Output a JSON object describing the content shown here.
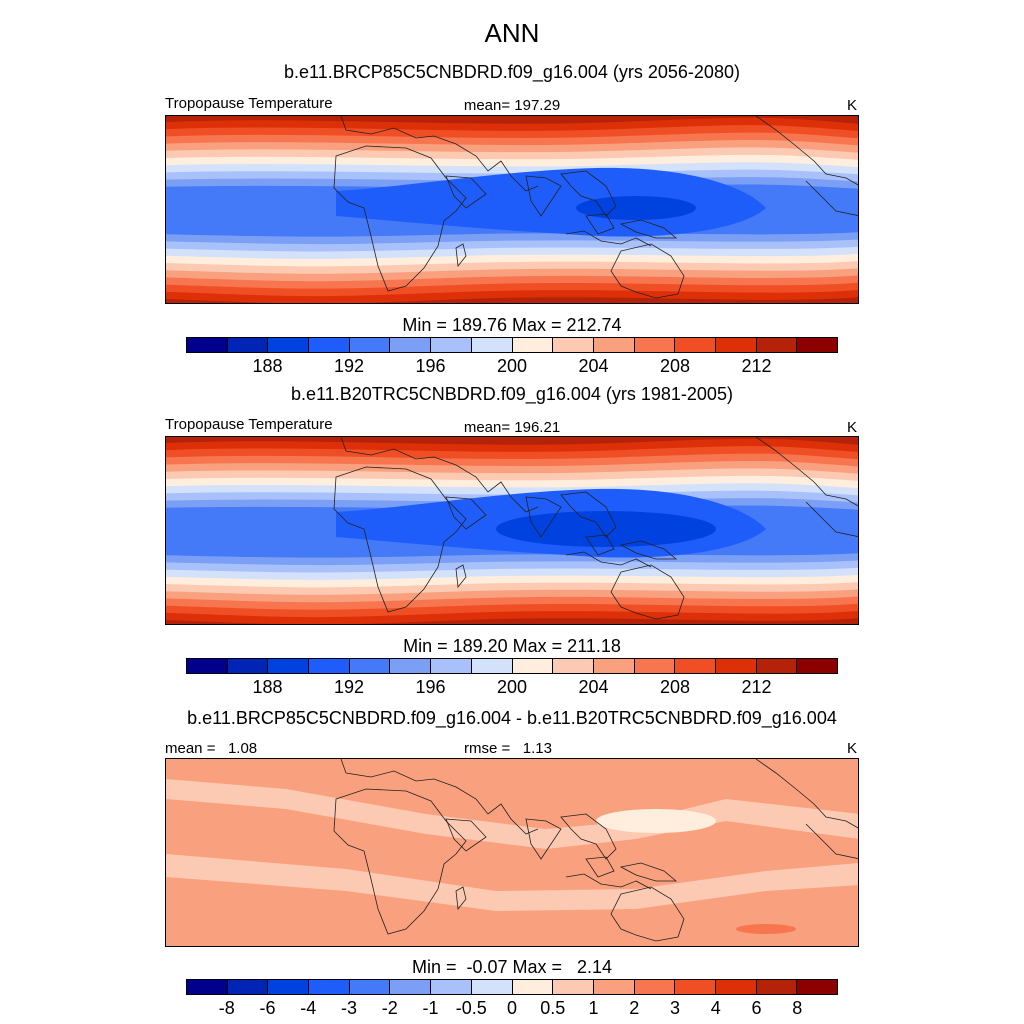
{
  "title": "ANN",
  "panels": [
    {
      "title": "b.e11.BRCP85C5CNBDRD.f09_g16.004 (yrs 2056-2080)",
      "left_label": "Tropopause Temperature",
      "center_label": "mean= 197.29",
      "unit": "K",
      "colorbar_title": "Min = 189.76 Max = 212.74",
      "colorbar_ticks": [
        "188",
        "192",
        "196",
        "200",
        "204",
        "208",
        "212"
      ],
      "colors": [
        "#00008c",
        "#0024b4",
        "#0042e0",
        "#1f5dfa",
        "#4479f7",
        "#7b9ff5",
        "#a9c1fa",
        "#d3e1fb",
        "#ffeedd",
        "#fccab2",
        "#f9a07e",
        "#f7764f",
        "#f04f25",
        "#de3008",
        "#b4220a",
        "#8c0000"
      ]
    },
    {
      "title": "b.e11.B20TRC5CNBDRD.f09_g16.004 (yrs 1981-2005)",
      "left_label": "Tropopause Temperature",
      "center_label": "mean= 196.21",
      "unit": "K",
      "colorbar_title": "Min = 189.20 Max = 211.18",
      "colorbar_ticks": [
        "188",
        "192",
        "196",
        "200",
        "204",
        "208",
        "212"
      ],
      "colors": [
        "#00008c",
        "#0024b4",
        "#0042e0",
        "#1f5dfa",
        "#4479f7",
        "#7b9ff5",
        "#a9c1fa",
        "#d3e1fb",
        "#ffeedd",
        "#fccab2",
        "#f9a07e",
        "#f7764f",
        "#f04f25",
        "#de3008",
        "#b4220a",
        "#8c0000"
      ]
    },
    {
      "title": "b.e11.BRCP85C5CNBDRD.f09_g16.004 - b.e11.B20TRC5CNBDRD.f09_g16.004",
      "left_label": "mean =   1.08",
      "center_label": "rmse =   1.13",
      "unit": "K",
      "colorbar_title": "Min =  -0.07 Max =   2.14",
      "colorbar_ticks": [
        "-8",
        "-6",
        "-4",
        "-3",
        "-2",
        "-1",
        "-0.5",
        "0",
        "0.5",
        "1",
        "2",
        "3",
        "4",
        "6",
        "8"
      ],
      "colors": [
        "#00008c",
        "#0024b4",
        "#0042e0",
        "#1f5dfa",
        "#4479f7",
        "#7b9ff5",
        "#a9c1fa",
        "#d3e1fb",
        "#ffeedd",
        "#fccab2",
        "#f9a07e",
        "#f7764f",
        "#f04f25",
        "#de3008",
        "#b4220a",
        "#8c0000"
      ]
    }
  ],
  "chart_data": [
    {
      "type": "heatmap",
      "title": "b.e11.BRCP85C5CNBDRD.f09_g16.004 (yrs 2056-2080)",
      "variable": "Tropopause Temperature",
      "units": "K",
      "mean": 197.29,
      "min": 189.76,
      "max": 212.74,
      "contour_levels": [
        186,
        188,
        190,
        192,
        194,
        196,
        198,
        200,
        202,
        204,
        206,
        208,
        210,
        212,
        214
      ]
    },
    {
      "type": "heatmap",
      "title": "b.e11.B20TRC5CNBDRD.f09_g16.004 (yrs 1981-2005)",
      "variable": "Tropopause Temperature",
      "units": "K",
      "mean": 196.21,
      "min": 189.2,
      "max": 211.18,
      "contour_levels": [
        186,
        188,
        190,
        192,
        194,
        196,
        198,
        200,
        202,
        204,
        206,
        208,
        210,
        212,
        214
      ]
    },
    {
      "type": "heatmap",
      "title": "b.e11.BRCP85C5CNBDRD.f09_g16.004 - b.e11.B20TRC5CNBDRD.f09_g16.004",
      "units": "K",
      "mean": 1.08,
      "rmse": 1.13,
      "min": -0.07,
      "max": 2.14,
      "contour_levels": [
        -8,
        -6,
        -4,
        -3,
        -2,
        -1,
        -0.5,
        0,
        0.5,
        1,
        2,
        3,
        4,
        6,
        8
      ]
    }
  ]
}
